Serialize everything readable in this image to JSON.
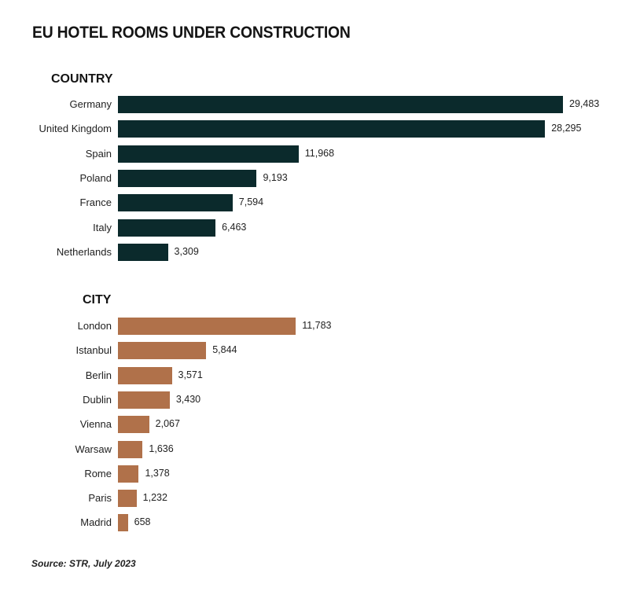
{
  "title": "EU HOTEL ROOMS UNDER CONSTRUCTION",
  "source": "Source: STR, July 2023",
  "colors": {
    "country": "#0b2a2c",
    "city": "#b0714a"
  },
  "chart_data": [
    {
      "type": "bar",
      "orientation": "horizontal",
      "title": "COUNTRY",
      "categories": [
        "Germany",
        "United Kingdom",
        "Spain",
        "Poland",
        "France",
        "Italy",
        "Netherlands"
      ],
      "values": [
        29483,
        28295,
        11968,
        9193,
        7594,
        6463,
        3309
      ],
      "value_labels": [
        "29,483",
        "28,295",
        "11,968",
        "9,193",
        "7,594",
        "6,463",
        "3,309"
      ]
    },
    {
      "type": "bar",
      "orientation": "horizontal",
      "title": "CITY",
      "categories": [
        "London",
        "Istanbul",
        "Berlin",
        "Dublin",
        "Vienna",
        "Warsaw",
        "Rome",
        "Paris",
        "Madrid"
      ],
      "values": [
        11783,
        5844,
        3571,
        3430,
        2067,
        1636,
        1378,
        1232,
        658
      ],
      "value_labels": [
        "11,783",
        "5,844",
        "3,571",
        "3,430",
        "2,067",
        "1,636",
        "1,378",
        "1,232",
        "658"
      ]
    }
  ]
}
